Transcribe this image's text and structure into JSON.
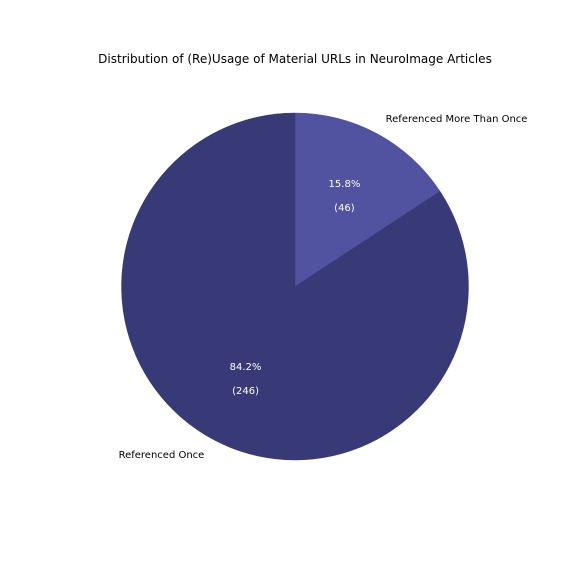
{
  "chart_data": {
    "type": "pie",
    "title": "Distribution of (Re)Usage of Material URLs in NeuroImage Articles",
    "slices": [
      {
        "label": "Referenced Once",
        "value": 246,
        "percent_label": "84.2%",
        "count_label": "(246)",
        "color": "#383A78"
      },
      {
        "label": "Referenced More Than Once",
        "value": 46,
        "percent_label": "15.8%",
        "count_label": "(46)",
        "color": "#5153A1"
      }
    ],
    "start_angle_deg": 90,
    "direction": "clockwise",
    "legend": "none"
  }
}
